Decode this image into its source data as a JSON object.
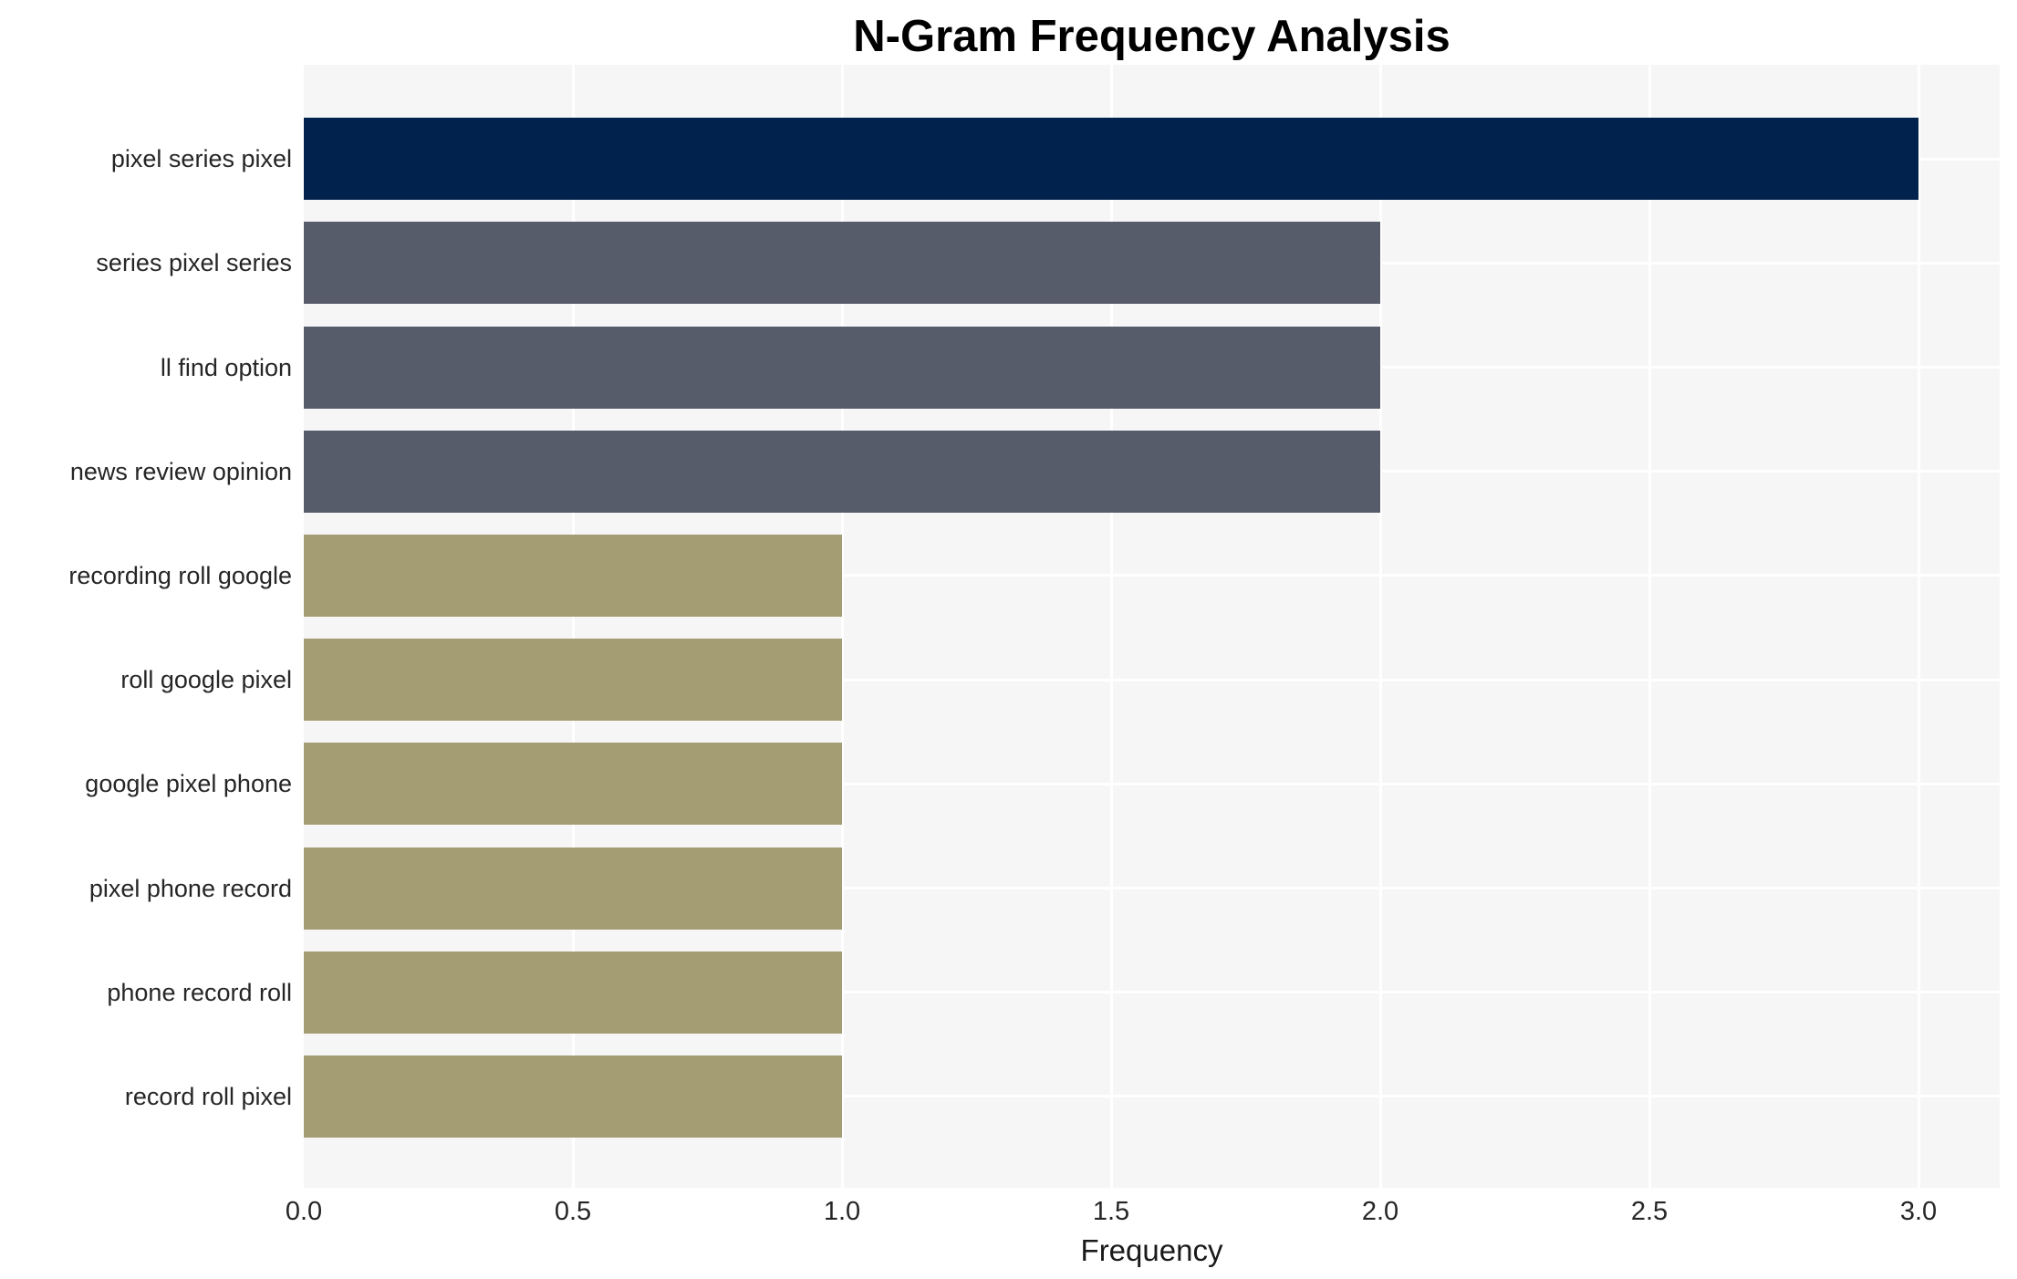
{
  "chart_data": {
    "type": "bar",
    "orientation": "horizontal",
    "title": "N-Gram Frequency Analysis",
    "xlabel": "Frequency",
    "ylabel": "",
    "categories": [
      "pixel series pixel",
      "series pixel series",
      "ll find option",
      "news review opinion",
      "recording roll google",
      "roll google pixel",
      "google pixel phone",
      "pixel phone record",
      "phone record roll",
      "record roll pixel"
    ],
    "values": [
      3,
      2,
      2,
      2,
      1,
      1,
      1,
      1,
      1,
      1
    ],
    "bar_colors": [
      "#00224d",
      "#565c69",
      "#565c69",
      "#565c69",
      "#a49d73",
      "#a49d73",
      "#a49d73",
      "#a49d73",
      "#a49d73",
      "#a49d73"
    ],
    "xlim": [
      0,
      3.15
    ],
    "xticks": [
      0,
      0.5,
      1,
      1.5,
      2,
      2.5,
      3
    ],
    "xtick_labels": [
      "0.0",
      "0.5",
      "1.0",
      "1.5",
      "2.0",
      "2.5",
      "3.0"
    ],
    "grid": true,
    "legend_position": "none",
    "colors": {
      "plot_background": "#f6f6f7",
      "grid_color": "#ffffff",
      "text_color": "#262626",
      "title_color": "#000000"
    }
  }
}
